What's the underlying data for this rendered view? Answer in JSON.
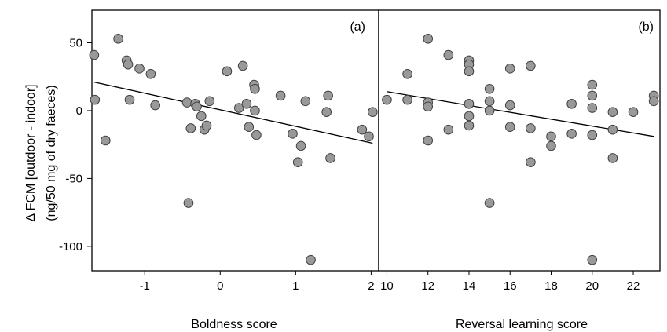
{
  "figure": {
    "ylabel_line1": "Δ FCM [outdoor - indoor]",
    "ylabel_line2": "(ng/50 mg of dry faeces)"
  },
  "chart_data": [
    {
      "type": "scatter",
      "panel_label": "(a)",
      "xlabel": "Boldness score",
      "xlim": [
        -1.7,
        2.1
      ],
      "ylim": [
        -118,
        74
      ],
      "xticks": [
        -1,
        0,
        1,
        2
      ],
      "xtick_labels": [
        "-1",
        "0",
        "1",
        "2"
      ],
      "yticks": [
        50,
        0,
        -50,
        -100
      ],
      "ytick_labels": [
        "50",
        "0",
        "-50",
        "-100"
      ],
      "points": [
        [
          -1.67,
          41
        ],
        [
          -1.66,
          8
        ],
        [
          -1.52,
          -22
        ],
        [
          -1.35,
          53
        ],
        [
          -1.24,
          37
        ],
        [
          -1.22,
          34
        ],
        [
          -1.2,
          8
        ],
        [
          -1.07,
          31
        ],
        [
          -0.92,
          27
        ],
        [
          -0.86,
          4
        ],
        [
          -0.44,
          6
        ],
        [
          -0.42,
          -68
        ],
        [
          -0.39,
          -13
        ],
        [
          -0.33,
          5
        ],
        [
          -0.31,
          3
        ],
        [
          -0.25,
          -4
        ],
        [
          -0.21,
          -14
        ],
        [
          -0.18,
          -11
        ],
        [
          -0.14,
          7
        ],
        [
          0.09,
          29
        ],
        [
          0.25,
          2
        ],
        [
          0.3,
          33
        ],
        [
          0.35,
          5
        ],
        [
          0.38,
          -12
        ],
        [
          0.45,
          19
        ],
        [
          0.46,
          16
        ],
        [
          0.46,
          0
        ],
        [
          0.48,
          -18
        ],
        [
          0.8,
          11
        ],
        [
          0.96,
          -17
        ],
        [
          1.03,
          -38
        ],
        [
          1.07,
          -26
        ],
        [
          1.13,
          7
        ],
        [
          1.2,
          -110
        ],
        [
          1.41,
          -1
        ],
        [
          1.43,
          11
        ],
        [
          1.46,
          -35
        ],
        [
          1.88,
          -14
        ],
        [
          1.97,
          -19
        ],
        [
          2.02,
          -1
        ]
      ],
      "trend_line": {
        "x": [
          -1.67,
          2.02
        ],
        "y": [
          21,
          -24
        ]
      }
    },
    {
      "type": "scatter",
      "panel_label": "(b)",
      "xlabel": "Reversal learning score",
      "xlim": [
        9.6,
        23.3
      ],
      "ylim": [
        -118,
        74
      ],
      "xticks": [
        10,
        12,
        14,
        16,
        18,
        20,
        22
      ],
      "xtick_labels": [
        "10",
        "12",
        "14",
        "16",
        "18",
        "20",
        "22"
      ],
      "points": [
        [
          10,
          8
        ],
        [
          11,
          27
        ],
        [
          11,
          8
        ],
        [
          12,
          53
        ],
        [
          12,
          6
        ],
        [
          12,
          3
        ],
        [
          12,
          -22
        ],
        [
          13,
          41
        ],
        [
          13,
          -14
        ],
        [
          14,
          37
        ],
        [
          14,
          34
        ],
        [
          14,
          29
        ],
        [
          14,
          5
        ],
        [
          14,
          -4
        ],
        [
          14,
          -11
        ],
        [
          15,
          16
        ],
        [
          15,
          7
        ],
        [
          15,
          0
        ],
        [
          15,
          -68
        ],
        [
          16,
          31
        ],
        [
          16,
          4
        ],
        [
          16,
          -12
        ],
        [
          17,
          33
        ],
        [
          17,
          -13
        ],
        [
          17,
          -38
        ],
        [
          18,
          -19
        ],
        [
          18,
          -26
        ],
        [
          19,
          5
        ],
        [
          19,
          -17
        ],
        [
          20,
          19
        ],
        [
          20,
          11
        ],
        [
          20,
          2
        ],
        [
          20,
          -18
        ],
        [
          20,
          -110
        ],
        [
          21,
          -1
        ],
        [
          21,
          -14
        ],
        [
          21,
          -35
        ],
        [
          22,
          -1
        ],
        [
          23,
          11
        ],
        [
          23,
          7
        ]
      ],
      "trend_line": {
        "x": [
          10,
          23
        ],
        "y": [
          14,
          -19
        ]
      }
    }
  ]
}
